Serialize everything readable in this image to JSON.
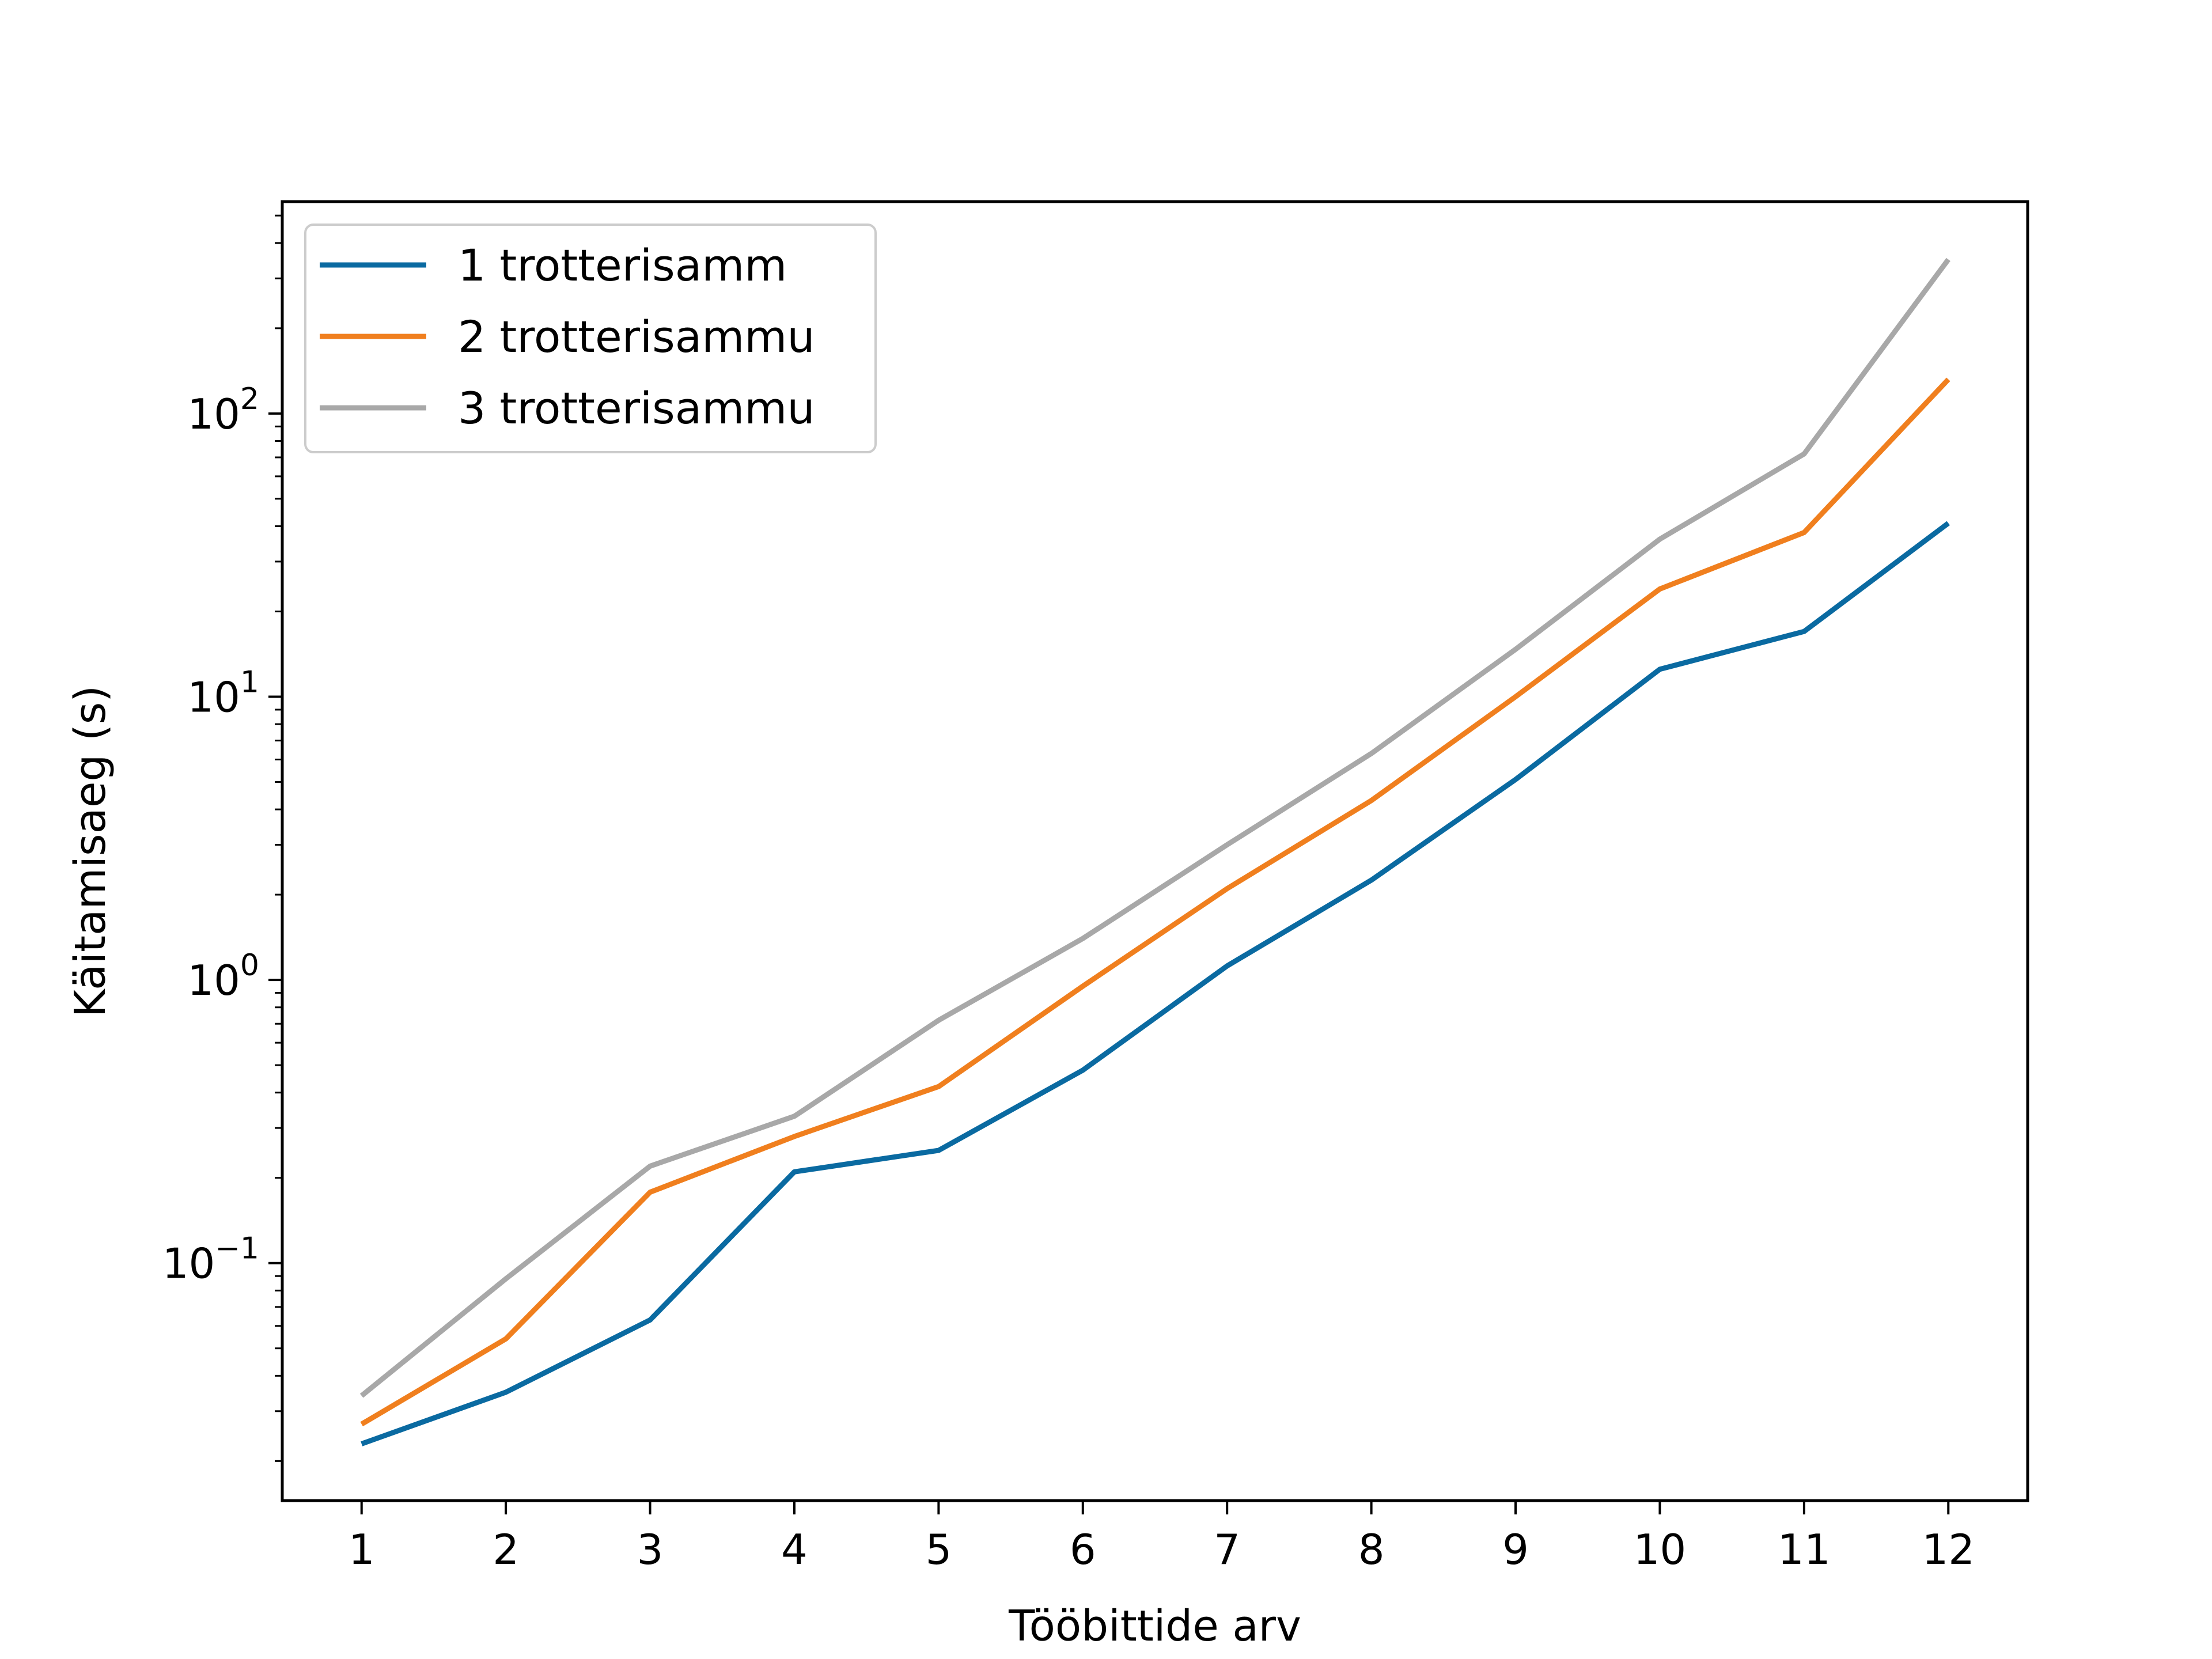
{
  "chart_data": {
    "type": "line",
    "title": "",
    "xlabel": "Tööbittide arv",
    "ylabel": "Käitamisaeg (s)",
    "yscale": "log",
    "xlim": [
      0.45,
      12.55
    ],
    "ylim": [
      0.0145,
      560
    ],
    "x": [
      1,
      2,
      3,
      4,
      5,
      6,
      7,
      8,
      9,
      10,
      11,
      12
    ],
    "xticks": [
      "1",
      "2",
      "3",
      "4",
      "5",
      "6",
      "7",
      "8",
      "9",
      "10",
      "11",
      "12"
    ],
    "yticks": [
      {
        "value": 0.1,
        "base": "10",
        "exp": "−1"
      },
      {
        "value": 1,
        "base": "10",
        "exp": "0"
      },
      {
        "value": 10,
        "base": "10",
        "exp": "1"
      },
      {
        "value": 100,
        "base": "10",
        "exp": "2"
      }
    ],
    "grid": false,
    "legend": "top-left",
    "series": [
      {
        "name": "1 trotterisamm",
        "color": "#0a6aa1",
        "values": [
          0.023,
          0.035,
          0.063,
          0.21,
          0.25,
          0.48,
          1.12,
          2.25,
          5.1,
          12.5,
          17,
          41
        ]
      },
      {
        "name": "2 trotterisammu",
        "color": "#f07f1e",
        "values": [
          0.027,
          0.054,
          0.178,
          0.28,
          0.42,
          0.95,
          2.1,
          4.3,
          10,
          24,
          38,
          132
        ]
      },
      {
        "name": "3 trotterisammu",
        "color": "#a8a8a8",
        "values": [
          0.034,
          0.088,
          0.22,
          0.33,
          0.72,
          1.4,
          3.0,
          6.3,
          14.7,
          36,
          72,
          350
        ]
      }
    ]
  }
}
